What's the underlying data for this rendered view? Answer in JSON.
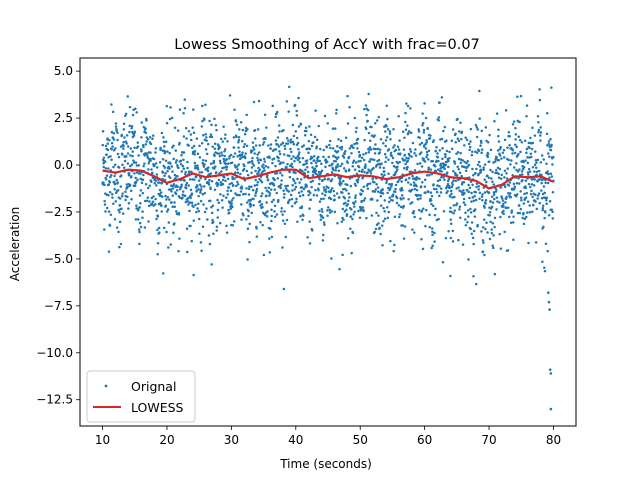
{
  "chart_data": {
    "type": "scatter",
    "title": "Lowess Smoothing of AccY with frac=0.07",
    "xlabel": "Time (seconds)",
    "ylabel": "Acceleration",
    "xlim": [
      6.5,
      83.5
    ],
    "ylim": [
      -13.9,
      5.7
    ],
    "xticks": [
      10,
      20,
      30,
      40,
      50,
      60,
      70,
      80
    ],
    "xtick_labels": [
      "10",
      "20",
      "30",
      "40",
      "50",
      "60",
      "70",
      "80"
    ],
    "yticks": [
      5.0,
      2.5,
      0.0,
      -2.5,
      -5.0,
      -7.5,
      -10.0,
      -12.5
    ],
    "ytick_labels": [
      "5.0",
      "2.5",
      "0.0",
      "−2.5",
      "−5.0",
      "−7.5",
      "−10.0",
      "−12.5"
    ],
    "grid": false,
    "legend": {
      "position": "lower-left",
      "entries": [
        {
          "name": "Orignal",
          "marker": "point",
          "color": "#1f77b4"
        },
        {
          "name": "LOWESS",
          "marker": "line",
          "color": "#d62728"
        }
      ]
    },
    "series": [
      {
        "name": "Orignal",
        "kind": "scatter",
        "color": "#1f77b4",
        "x_range": [
          10,
          80
        ],
        "n_points": 7000,
        "approx_center": -0.5,
        "approx_spread_y": [
          -6.5,
          4.5
        ],
        "notable_outliers": [
          {
            "x": 79.2,
            "y": -6.8
          },
          {
            "x": 79.3,
            "y": -7.3
          },
          {
            "x": 79.4,
            "y": -7.7
          },
          {
            "x": 79.5,
            "y": -10.9
          },
          {
            "x": 79.6,
            "y": -11.1
          },
          {
            "x": 79.6,
            "y": -13.0
          }
        ]
      },
      {
        "name": "LOWESS",
        "kind": "line",
        "color": "#d62728",
        "x": [
          10,
          12,
          14,
          16,
          18,
          20,
          22,
          24,
          26,
          28,
          30,
          32,
          34,
          36,
          38,
          40,
          42,
          44,
          46,
          48,
          50,
          52,
          54,
          56,
          58,
          60,
          62,
          64,
          66,
          68,
          70,
          72,
          74,
          76,
          78,
          80
        ],
        "y": [
          -0.3,
          -0.4,
          -0.25,
          -0.3,
          -0.6,
          -0.95,
          -0.75,
          -0.45,
          -0.65,
          -0.55,
          -0.45,
          -0.75,
          -0.6,
          -0.4,
          -0.25,
          -0.25,
          -0.7,
          -0.6,
          -0.5,
          -0.65,
          -0.55,
          -0.6,
          -0.75,
          -0.65,
          -0.45,
          -0.35,
          -0.45,
          -0.65,
          -0.7,
          -0.85,
          -1.25,
          -1.05,
          -0.6,
          -0.65,
          -0.6,
          -0.9
        ]
      }
    ]
  }
}
